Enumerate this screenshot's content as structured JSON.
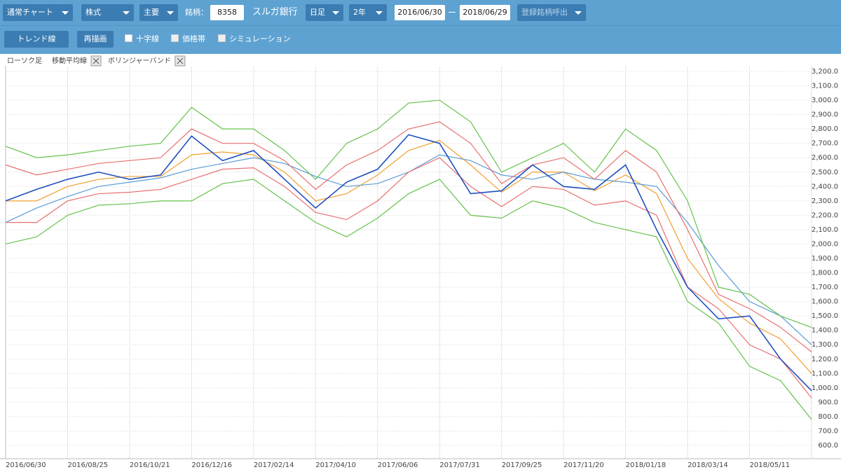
{
  "toolbar": {
    "chart_kind": "通常チャート",
    "market": "株式",
    "section": "主要",
    "code_label": "銘柄：",
    "code": "8358",
    "company": "スルガ銀行",
    "period": "日足",
    "span": "2年",
    "date_from": "2016/06/30",
    "date_to": "2018/06/29",
    "recall": "登録銘柄呼出",
    "trend": "トレンド線",
    "redraw": "再描画",
    "crosshair": "十字線",
    "price_band": "価格帯",
    "simulation": "シミュレーション"
  },
  "chart_data": {
    "type": "line",
    "categories": [
      "2016/06/30",
      null,
      "2016/08/25",
      null,
      "2016/10/21",
      null,
      "2016/12/16",
      null,
      "2017/02/14",
      null,
      "2017/04/10",
      null,
      "2017/06/06",
      null,
      "2017/07/31",
      null,
      "2017/09/25",
      null,
      "2017/11/20",
      null,
      "2018/01/18",
      null,
      "2018/03/14",
      null,
      "2018/05/11",
      null,
      null
    ],
    "series": [
      {
        "name": "ローソク足",
        "color": "#1f4fbf",
        "values": [
          2300,
          2380,
          2450,
          2500,
          2450,
          2480,
          2750,
          2580,
          2650,
          2450,
          2250,
          2430,
          2520,
          2760,
          2700,
          2350,
          2370,
          2550,
          2400,
          2380,
          2550,
          2100,
          1700,
          1480,
          1500,
          1200,
          980
        ]
      },
      {
        "name": "移動平均線",
        "color": "#f0a030",
        "values": [
          2300,
          2300,
          2400,
          2450,
          2470,
          2470,
          2620,
          2640,
          2620,
          2500,
          2300,
          2350,
          2480,
          2650,
          2720,
          2550,
          2360,
          2500,
          2500,
          2370,
          2480,
          2350,
          1900,
          1620,
          1450,
          1340,
          1100
        ]
      },
      {
        "color": "#5b9bd5",
        "values": [
          2150,
          2250,
          2330,
          2400,
          2430,
          2460,
          2520,
          2560,
          2600,
          2560,
          2470,
          2400,
          2420,
          2500,
          2620,
          2580,
          2480,
          2450,
          2500,
          2450,
          2430,
          2400,
          2150,
          1850,
          1600,
          1500,
          1300
        ]
      },
      {
        "name": "ボリンジャーバンド",
        "color": "#66c24c",
        "values": [
          2680,
          2600,
          2620,
          2650,
          2680,
          2700,
          2950,
          2800,
          2800,
          2650,
          2450,
          2700,
          2800,
          2980,
          3000,
          2850,
          2500,
          2600,
          2700,
          2500,
          2800,
          2650,
          2300,
          1700,
          1650,
          1500,
          1420
        ]
      },
      {
        "color": "#66c24c",
        "values": [
          2000,
          2050,
          2200,
          2270,
          2280,
          2300,
          2300,
          2420,
          2450,
          2300,
          2150,
          2050,
          2180,
          2350,
          2450,
          2200,
          2180,
          2300,
          2250,
          2150,
          2100,
          2050,
          1600,
          1450,
          1150,
          1050,
          780
        ]
      },
      {
        "color": "#e87070",
        "values": [
          2550,
          2480,
          2520,
          2560,
          2580,
          2600,
          2800,
          2700,
          2700,
          2580,
          2380,
          2550,
          2650,
          2800,
          2850,
          2700,
          2420,
          2550,
          2600,
          2450,
          2650,
          2500,
          2100,
          1650,
          1550,
          1420,
          1250
        ]
      },
      {
        "color": "#e87070",
        "values": [
          2150,
          2150,
          2300,
          2350,
          2360,
          2380,
          2450,
          2520,
          2530,
          2400,
          2220,
          2170,
          2300,
          2500,
          2600,
          2400,
          2260,
          2400,
          2380,
          2270,
          2300,
          2200,
          1700,
          1550,
          1300,
          1200,
          930
        ]
      }
    ],
    "ylim": [
      510,
      3235
    ],
    "yticks": [
      {
        "value": 600,
        "label": "600.0"
      },
      {
        "value": 700,
        "label": "700.0"
      },
      {
        "value": 800,
        "label": "800.0"
      },
      {
        "value": 900,
        "label": "900.0"
      },
      {
        "value": 1000,
        "label": "1,000.0"
      },
      {
        "value": 1100,
        "label": "1,100.0"
      },
      {
        "value": 1200,
        "label": "1,200.0"
      },
      {
        "value": 1300,
        "label": "1,300.0"
      },
      {
        "value": 1400,
        "label": "1,400.0"
      },
      {
        "value": 1500,
        "label": "1,500.0"
      },
      {
        "value": 1600,
        "label": "1,600.0"
      },
      {
        "value": 1700,
        "label": "1,700.0"
      },
      {
        "value": 1800,
        "label": "1,800.0"
      },
      {
        "value": 1900,
        "label": "1,900.0"
      },
      {
        "value": 2000,
        "label": "2,000.0"
      },
      {
        "value": 2100,
        "label": "2,100.0"
      },
      {
        "value": 2200,
        "label": "2,200.0"
      },
      {
        "value": 2300,
        "label": "2,300.0"
      },
      {
        "value": 2400,
        "label": "2,400.0"
      },
      {
        "value": 2500,
        "label": "2,500.0"
      },
      {
        "value": 2600,
        "label": "2,600.0"
      },
      {
        "value": 2700,
        "label": "2,700.0"
      },
      {
        "value": 2800,
        "label": "2,800.0"
      },
      {
        "value": 2900,
        "label": "2,900.0"
      },
      {
        "value": 3000,
        "label": "3,000.0"
      },
      {
        "value": 3100,
        "label": "3,100.0"
      },
      {
        "value": 3200,
        "label": "3,200.0"
      }
    ],
    "grid": true
  }
}
